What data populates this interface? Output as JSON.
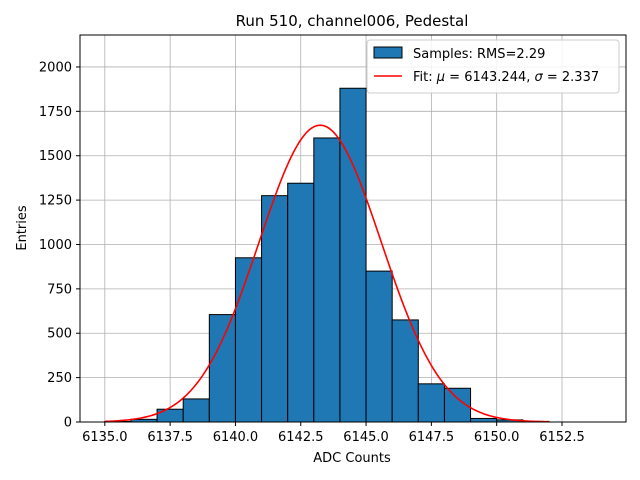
{
  "chart_data": {
    "type": "bar",
    "title": "Run 510, channel006, Pedestal",
    "xlabel": "ADC Counts",
    "ylabel": "Entries",
    "xlim": [
      6134.05,
      6154.95
    ],
    "ylim": [
      0,
      2180
    ],
    "xticks": [
      6135.0,
      6137.5,
      6140.0,
      6142.5,
      6145.0,
      6147.5,
      6150.0,
      6152.5
    ],
    "xtick_labels": [
      "6135.0",
      "6137.5",
      "6140.0",
      "6142.5",
      "6145.0",
      "6147.5",
      "6150.0",
      "6152.5"
    ],
    "yticks": [
      0,
      250,
      500,
      750,
      1000,
      1250,
      1500,
      1750,
      2000
    ],
    "ytick_labels": [
      "0",
      "250",
      "500",
      "750",
      "1000",
      "1250",
      "1500",
      "1750",
      "2000"
    ],
    "grid": true,
    "legend_position": "upper right",
    "bar_color": "#1f77b4",
    "bar_edge_color": "#000000",
    "fit_color": "#ff0000",
    "bins": [
      {
        "x0": 6135,
        "x1": 6136,
        "value": 3
      },
      {
        "x0": 6136,
        "x1": 6137,
        "value": 15
      },
      {
        "x0": 6137,
        "x1": 6138,
        "value": 72
      },
      {
        "x0": 6138,
        "x1": 6139,
        "value": 130
      },
      {
        "x0": 6139,
        "x1": 6140,
        "value": 605
      },
      {
        "x0": 6140,
        "x1": 6141,
        "value": 925
      },
      {
        "x0": 6141,
        "x1": 6142,
        "value": 1275
      },
      {
        "x0": 6142,
        "x1": 6143,
        "value": 1345
      },
      {
        "x0": 6143,
        "x1": 6144,
        "value": 1600
      },
      {
        "x0": 6144,
        "x1": 6145,
        "value": 1880
      },
      {
        "x0": 6145,
        "x1": 6146,
        "value": 850
      },
      {
        "x0": 6146,
        "x1": 6147,
        "value": 575
      },
      {
        "x0": 6147,
        "x1": 6148,
        "value": 215
      },
      {
        "x0": 6148,
        "x1": 6149,
        "value": 190
      },
      {
        "x0": 6149,
        "x1": 6150,
        "value": 20
      },
      {
        "x0": 6150,
        "x1": 6151,
        "value": 12
      },
      {
        "x0": 6151,
        "x1": 6152,
        "value": 3
      }
    ],
    "fit": {
      "mu": 6143.244,
      "sigma": 2.337,
      "amplitude": 1672,
      "x_range": [
        6135,
        6152
      ]
    },
    "series": [
      {
        "name": "Samples: RMS=2.29",
        "kind": "histogram"
      },
      {
        "name_prefix": "Fit: ",
        "name_mu_part": " = 6143.244, ",
        "name_sigma_part": " = 2.337",
        "mu_symbol": "μ",
        "sigma_symbol": "σ",
        "kind": "line"
      }
    ]
  }
}
